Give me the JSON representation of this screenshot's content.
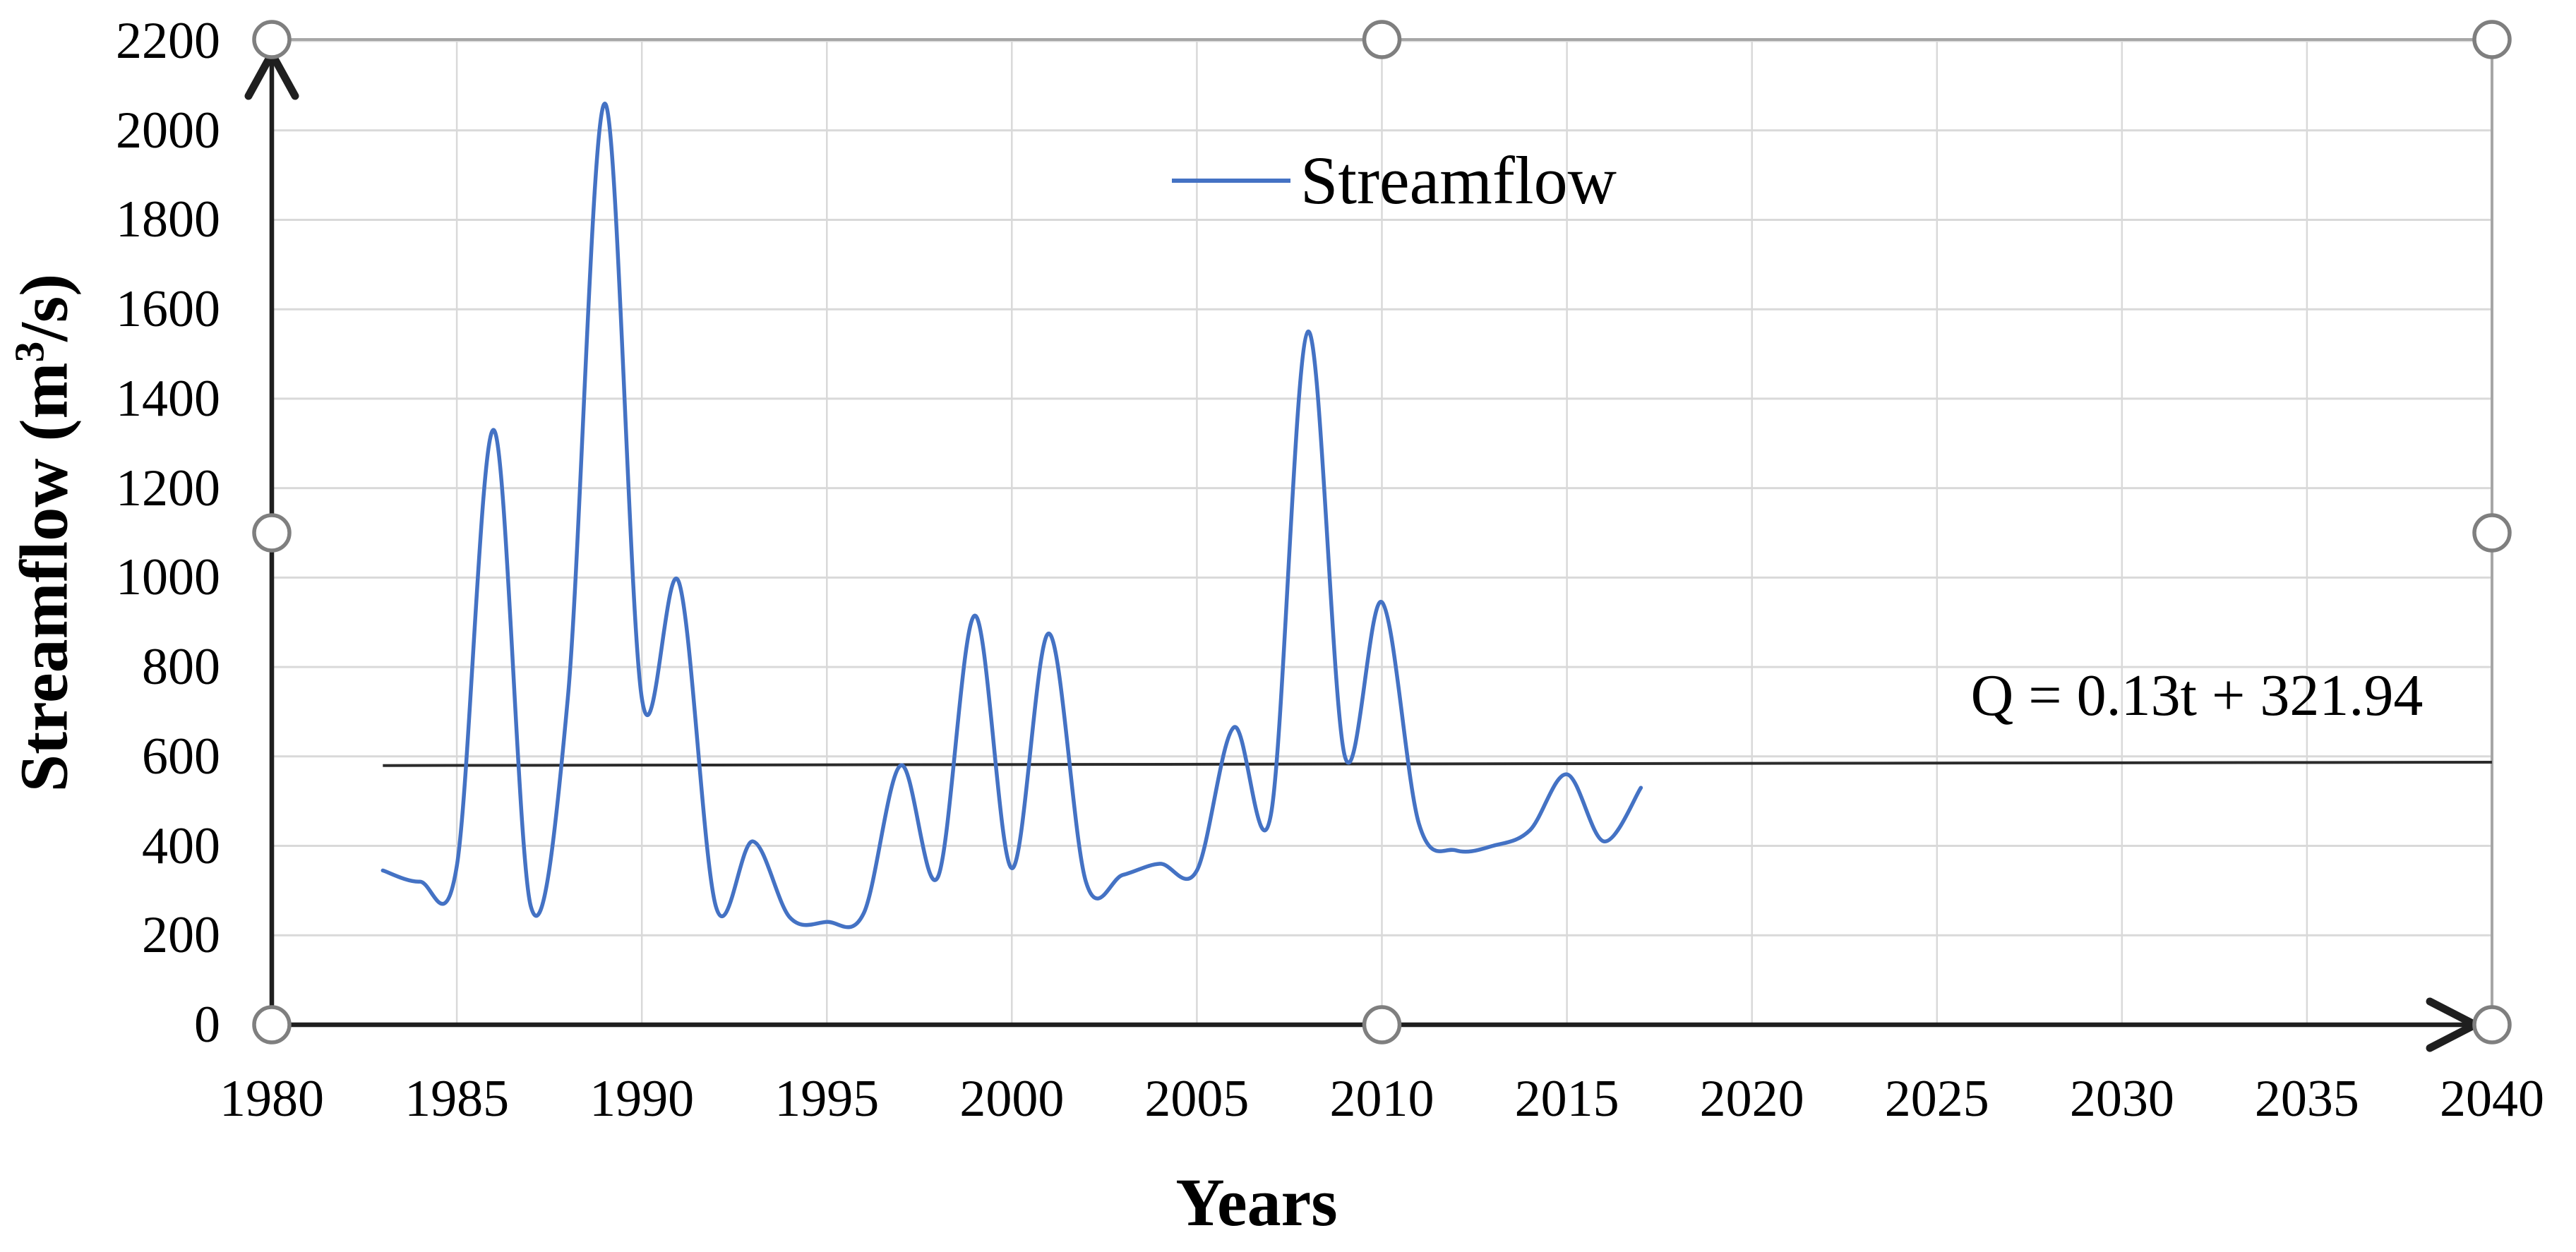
{
  "figure": {
    "legend_label": "Streamflow",
    "equation_label": "Q = 0.13t + 321.94",
    "x_title": "Years",
    "y_title_pre": "Streamflow (m",
    "y_title_sup": "3",
    "y_title_post": "/s)"
  },
  "selection": {
    "selected": true,
    "handle_count": 8,
    "handles": [
      "top-left",
      "top-middle",
      "top-right",
      "middle-left",
      "middle-right",
      "bottom-left",
      "bottom-middle",
      "bottom-right"
    ]
  },
  "chart_data": {
    "type": "line",
    "title": "",
    "xlabel": "Years",
    "ylabel": "Streamflow (m³/s)",
    "legend": [
      "Streamflow"
    ],
    "legend_position": "top-center",
    "grid": true,
    "smoothed": true,
    "xlim": [
      1980,
      2040
    ],
    "ylim": [
      0,
      2200
    ],
    "x_ticks": [
      1980,
      1985,
      1990,
      1995,
      2000,
      2005,
      2010,
      2015,
      2020,
      2025,
      2030,
      2035,
      2040
    ],
    "y_ticks": [
      0,
      200,
      400,
      600,
      800,
      1000,
      1200,
      1400,
      1600,
      1800,
      2000,
      2200
    ],
    "series": [
      {
        "name": "Streamflow",
        "x": [
          1983,
          1984,
          1985,
          1986,
          1987,
          1988,
          1989,
          1990,
          1991,
          1992,
          1993,
          1994,
          1995,
          1996,
          1997,
          1998,
          1999,
          2000,
          2001,
          2002,
          2003,
          2004,
          2005,
          2006,
          2007,
          2008,
          2009,
          2010,
          2011,
          2012,
          2013,
          2014,
          2015,
          2016,
          2017
        ],
        "values": [
          345,
          320,
          355,
          1330,
          265,
          730,
          2060,
          730,
          990,
          265,
          410,
          240,
          230,
          250,
          580,
          330,
          915,
          350,
          875,
          320,
          335,
          360,
          345,
          665,
          470,
          1550,
          600,
          945,
          450,
          390,
          400,
          435,
          560,
          410,
          530
        ]
      }
    ],
    "trendline": {
      "label": "Q = 0.13t + 321.94",
      "slope": 0.13,
      "intercept": 321.94,
      "x_start": 1983,
      "x_end": 2040
    },
    "colors": {
      "series": "#4472C4",
      "trendline": "#2b2b2b",
      "gridline": "#D9D9D9",
      "axis": "#1f1f1f",
      "selection_border": "#A6A6A6",
      "handle_stroke": "#7F7F7F",
      "handle_fill": "#FFFFFF",
      "text": "#000000"
    }
  }
}
